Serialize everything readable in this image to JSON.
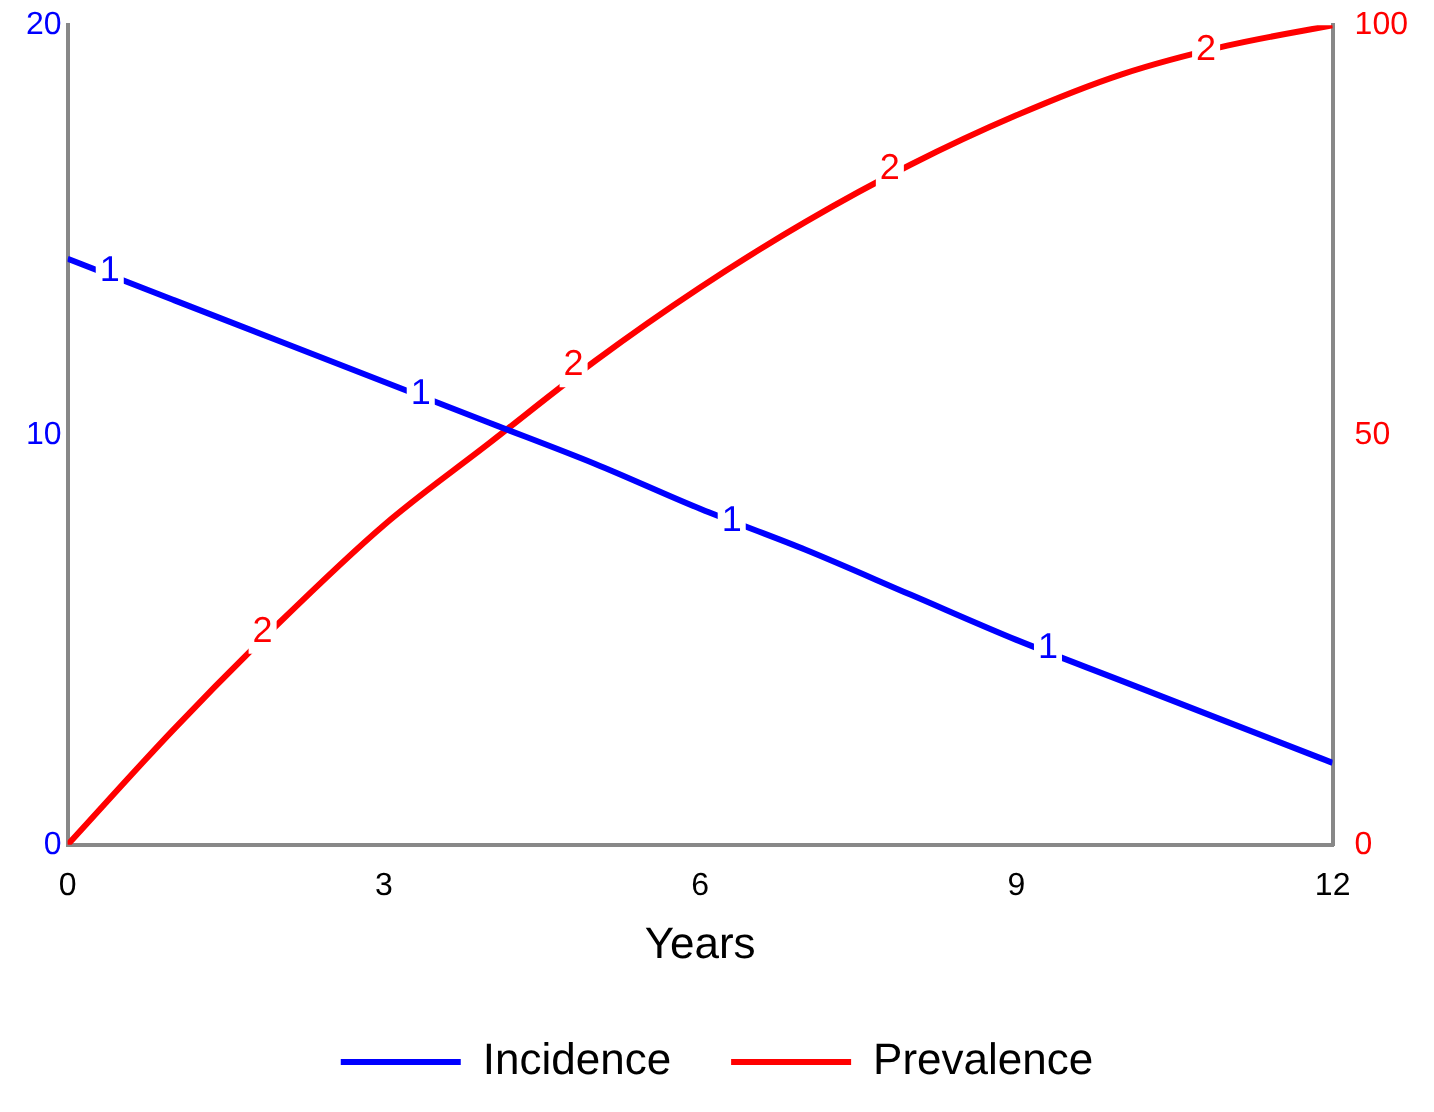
{
  "chart_data": {
    "type": "line",
    "xlabel": "Years",
    "x": [
      0,
      1,
      2,
      3,
      4,
      5,
      6,
      7,
      8,
      9,
      10,
      11,
      12
    ],
    "series": [
      {
        "name": "Incidence",
        "color": "#0000ff",
        "values": [
          14.3,
          13.3,
          12.3,
          11.3,
          10.3,
          9.3,
          8.2,
          7.2,
          6.1,
          5.0,
          4.0,
          3.0,
          2.0
        ]
      },
      {
        "name": "Prevalence",
        "color": "#ff0000",
        "axis": "y2",
        "values": [
          0,
          14,
          27,
          39,
          49,
          59,
          68,
          76,
          83,
          89,
          94,
          97.5,
          100
        ]
      }
    ],
    "xlim": [
      0,
      12
    ],
    "xticks": [
      0,
      3,
      6,
      9,
      12
    ],
    "ylim": [
      0,
      20
    ],
    "yticks": [
      0,
      10,
      20
    ],
    "y2lim": [
      0,
      100
    ],
    "y2ticks": [
      0,
      50,
      100
    ],
    "annotations": [
      {
        "text": "1",
        "x": 0.4,
        "y": 14.0
      },
      {
        "text": "1",
        "x": 3.35,
        "y": 11.0
      },
      {
        "text": "1",
        "x": 6.3,
        "y": 7.9
      },
      {
        "text": "1",
        "x": 9.3,
        "y": 4.8
      },
      {
        "text": "2",
        "x": 1.85,
        "y": 5.2
      },
      {
        "text": "2",
        "x": 4.8,
        "y": 11.7
      },
      {
        "text": "2",
        "x": 7.8,
        "y": 16.5
      },
      {
        "text": "2",
        "x": 10.8,
        "y": 19.4
      }
    ],
    "grid": false,
    "legend": "bottom",
    "line_style": "solid"
  }
}
